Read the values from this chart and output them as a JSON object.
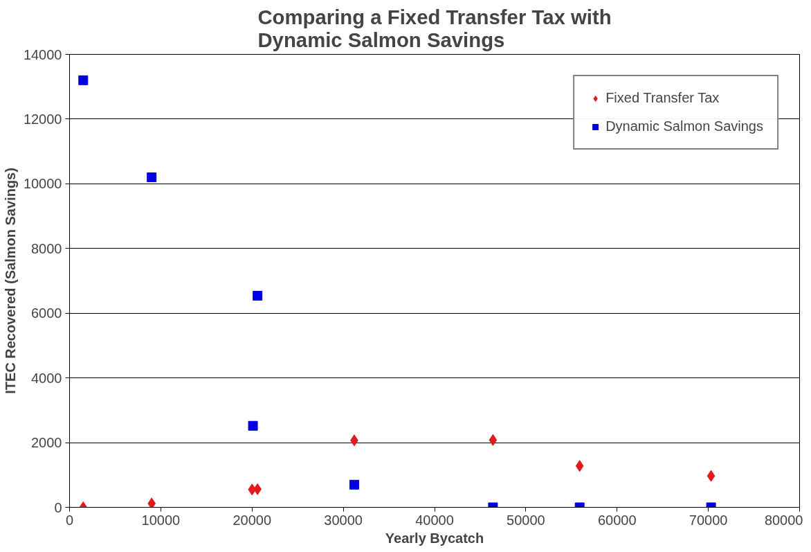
{
  "chart_data": {
    "type": "scatter",
    "title": "Comparing a Fixed Transfer Tax with\nDynamic Salmon Savings",
    "xlabel": "Yearly Bycatch",
    "ylabel": "ITEC Recovered (Salmon Savings)",
    "xlim": [
      0,
      80000
    ],
    "xticks": [
      0,
      10000,
      20000,
      30000,
      40000,
      50000,
      60000,
      70000,
      80000
    ],
    "ylim": [
      0,
      14000
    ],
    "yticks": [
      0,
      2000,
      4000,
      6000,
      8000,
      10000,
      12000,
      14000
    ],
    "grid": "y",
    "legend": "top right",
    "series": [
      {
        "name": "Fixed Transfer Tax",
        "color": "#e31a1c",
        "marker": "diamond",
        "x": [
          1500,
          9000,
          20000,
          20600,
          31200,
          46400,
          55900,
          70300
        ],
        "values": [
          0,
          120,
          550,
          560,
          2070,
          2080,
          1280,
          970
        ]
      },
      {
        "name": "Dynamic Salmon Savings",
        "color": "#0000e0",
        "marker": "square",
        "x": [
          1500,
          9000,
          20600,
          20100,
          31200,
          46400,
          55900,
          70300
        ],
        "values": [
          13200,
          10200,
          6540,
          2520,
          700,
          0,
          0,
          0
        ]
      }
    ]
  }
}
